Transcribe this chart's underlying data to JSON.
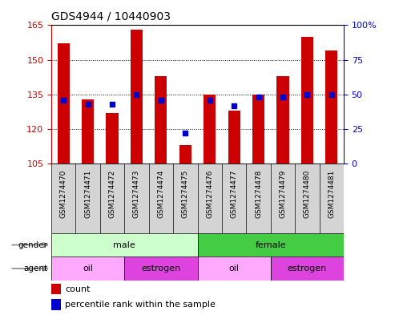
{
  "title": "GDS4944 / 10440903",
  "samples": [
    "GSM1274470",
    "GSM1274471",
    "GSM1274472",
    "GSM1274473",
    "GSM1274474",
    "GSM1274475",
    "GSM1274476",
    "GSM1274477",
    "GSM1274478",
    "GSM1274479",
    "GSM1274480",
    "GSM1274481"
  ],
  "counts": [
    157,
    133,
    127,
    163,
    143,
    113,
    135,
    128,
    135,
    143,
    160,
    154
  ],
  "percentiles": [
    46,
    43,
    43,
    50,
    46,
    22,
    46,
    42,
    48,
    48,
    50,
    50
  ],
  "ylim_left": [
    105,
    165
  ],
  "ylim_right": [
    0,
    100
  ],
  "yticks_left": [
    105,
    120,
    135,
    150,
    165
  ],
  "yticks_right": [
    0,
    25,
    50,
    75,
    100
  ],
  "bar_color": "#cc0000",
  "dot_color": "#0000cc",
  "axis_color_left": "#cc0000",
  "axis_color_right": "#0000cc",
  "gender": [
    "male",
    "male",
    "male",
    "male",
    "male",
    "male",
    "female",
    "female",
    "female",
    "female",
    "female",
    "female"
  ],
  "agent": [
    "oil",
    "oil",
    "oil",
    "estrogen",
    "estrogen",
    "estrogen",
    "oil",
    "oil",
    "oil",
    "estrogen",
    "estrogen",
    "estrogen"
  ],
  "gender_colors": {
    "male": "#ccffcc",
    "female": "#44cc44"
  },
  "agent_colors": {
    "oil": "#ffaaff",
    "estrogen": "#dd44dd"
  },
  "legend_count_label": "count",
  "legend_percentile_label": "percentile rank within the sample",
  "sample_bg": "#d4d4d4",
  "gridline_ticks": [
    120,
    135,
    150
  ]
}
